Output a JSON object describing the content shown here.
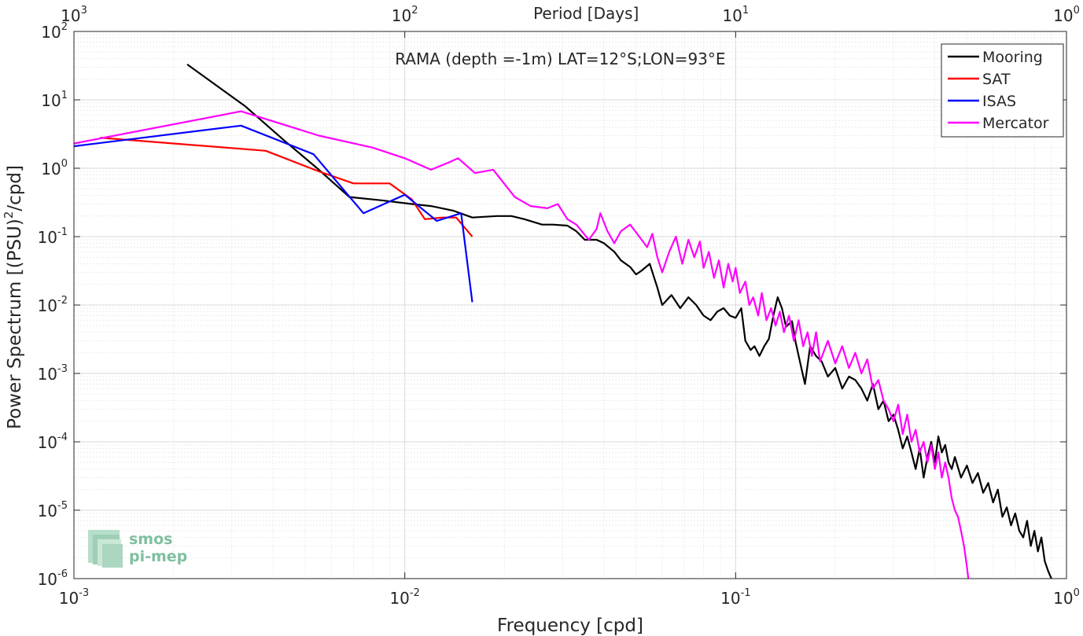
{
  "chart_data": {
    "type": "line",
    "title": "RAMA (depth =-1m) LAT=12°S;LON=93°E",
    "xlabel": "Frequency [cpd]",
    "ylabel": "Power Spectrum [(PSU)²/cpd]",
    "x2label": "Period [Days]",
    "x_scale": "log",
    "y_scale": "log",
    "xlim": [
      0.001,
      1
    ],
    "ylim": [
      1e-06,
      100
    ],
    "grid": true,
    "legend_position": "top-right",
    "x_ticks": [
      {
        "base": "10",
        "exp": "-3",
        "value": 0.001
      },
      {
        "base": "10",
        "exp": "-2",
        "value": 0.01
      },
      {
        "base": "10",
        "exp": "-1",
        "value": 0.1
      },
      {
        "base": "10",
        "exp": "0",
        "value": 1
      }
    ],
    "y_ticks": [
      {
        "base": "10",
        "exp": "-6",
        "value": 1e-06
      },
      {
        "base": "10",
        "exp": "-5",
        "value": 1e-05
      },
      {
        "base": "10",
        "exp": "-4",
        "value": 0.0001
      },
      {
        "base": "10",
        "exp": "-3",
        "value": 0.001
      },
      {
        "base": "10",
        "exp": "-2",
        "value": 0.01
      },
      {
        "base": "10",
        "exp": "-1",
        "value": 0.1
      },
      {
        "base": "10",
        "exp": "0",
        "value": 1
      },
      {
        "base": "10",
        "exp": "1",
        "value": 10
      },
      {
        "base": "10",
        "exp": "2",
        "value": 100
      }
    ],
    "x2_ticks": [
      {
        "base": "10",
        "exp": "3",
        "period": 1000
      },
      {
        "base": "10",
        "exp": "2",
        "period": 100
      },
      {
        "base": "10",
        "exp": "1",
        "period": 10
      },
      {
        "base": "10",
        "exp": "0",
        "period": 1
      }
    ],
    "series": [
      {
        "name": "Mooring",
        "color": "#000000",
        "points": [
          [
            0.0022,
            33
          ],
          [
            0.0033,
            8
          ],
          [
            0.0043,
            2.6
          ],
          [
            0.0055,
            0.95
          ],
          [
            0.0068,
            0.38
          ],
          [
            0.0085,
            0.34
          ],
          [
            0.0105,
            0.3
          ],
          [
            0.012,
            0.28
          ],
          [
            0.014,
            0.24
          ],
          [
            0.016,
            0.19
          ],
          [
            0.019,
            0.2
          ],
          [
            0.021,
            0.2
          ],
          [
            0.023,
            0.18
          ],
          [
            0.026,
            0.15
          ],
          [
            0.028,
            0.15
          ],
          [
            0.031,
            0.145
          ],
          [
            0.033,
            0.12
          ],
          [
            0.035,
            0.09
          ],
          [
            0.038,
            0.09
          ],
          [
            0.04,
            0.08
          ],
          [
            0.043,
            0.06
          ],
          [
            0.045,
            0.045
          ],
          [
            0.048,
            0.036
          ],
          [
            0.05,
            0.028
          ],
          [
            0.052,
            0.032
          ],
          [
            0.055,
            0.04
          ],
          [
            0.058,
            0.018
          ],
          [
            0.06,
            0.01
          ],
          [
            0.064,
            0.014
          ],
          [
            0.068,
            0.009
          ],
          [
            0.072,
            0.013
          ],
          [
            0.076,
            0.01
          ],
          [
            0.08,
            0.007
          ],
          [
            0.084,
            0.006
          ],
          [
            0.088,
            0.008
          ],
          [
            0.092,
            0.009
          ],
          [
            0.096,
            0.007
          ],
          [
            0.1,
            0.0065
          ],
          [
            0.104,
            0.009
          ],
          [
            0.107,
            0.003
          ],
          [
            0.111,
            0.0022
          ],
          [
            0.114,
            0.0025
          ],
          [
            0.118,
            0.0018
          ],
          [
            0.122,
            0.0025
          ],
          [
            0.126,
            0.0032
          ],
          [
            0.13,
            0.007
          ],
          [
            0.134,
            0.013
          ],
          [
            0.138,
            0.009
          ],
          [
            0.142,
            0.0048
          ],
          [
            0.148,
            0.0058
          ],
          [
            0.152,
            0.0028
          ],
          [
            0.158,
            0.0012
          ],
          [
            0.162,
            0.0007
          ],
          [
            0.168,
            0.0025
          ],
          [
            0.175,
            0.0018
          ],
          [
            0.182,
            0.0015
          ],
          [
            0.19,
            0.0009
          ],
          [
            0.2,
            0.0012
          ],
          [
            0.21,
            0.0006
          ],
          [
            0.22,
            0.0009
          ],
          [
            0.23,
            0.0008
          ],
          [
            0.24,
            0.0006
          ],
          [
            0.25,
            0.0004
          ],
          [
            0.26,
            0.0007
          ],
          [
            0.27,
            0.0003
          ],
          [
            0.28,
            0.0004
          ],
          [
            0.29,
            0.0002
          ],
          [
            0.3,
            0.00025
          ],
          [
            0.31,
            0.00015
          ],
          [
            0.32,
            8e-05
          ],
          [
            0.33,
            0.00012
          ],
          [
            0.34,
            7e-05
          ],
          [
            0.35,
            4e-05
          ],
          [
            0.36,
            8e-05
          ],
          [
            0.37,
            3e-05
          ],
          [
            0.38,
            6e-05
          ],
          [
            0.39,
            0.0001
          ],
          [
            0.4,
            5e-05
          ],
          [
            0.41,
            0.00012
          ],
          [
            0.42,
            7e-05
          ],
          [
            0.43,
            9e-05
          ],
          [
            0.44,
            5e-05
          ],
          [
            0.45,
            4e-05
          ],
          [
            0.46,
            6e-05
          ],
          [
            0.48,
            3e-05
          ],
          [
            0.5,
            4.5e-05
          ],
          [
            0.52,
            2.5e-05
          ],
          [
            0.54,
            3.5e-05
          ],
          [
            0.56,
            1.8e-05
          ],
          [
            0.58,
            2.5e-05
          ],
          [
            0.6,
            1.3e-05
          ],
          [
            0.62,
            2e-05
          ],
          [
            0.64,
            8e-06
          ],
          [
            0.66,
            1.1e-05
          ],
          [
            0.68,
            6e-06
          ],
          [
            0.7,
            9e-06
          ],
          [
            0.72,
            5e-06
          ],
          [
            0.74,
            4e-06
          ],
          [
            0.76,
            7e-06
          ],
          [
            0.78,
            3e-06
          ],
          [
            0.8,
            5e-06
          ],
          [
            0.82,
            2.5e-06
          ],
          [
            0.84,
            4e-06
          ],
          [
            0.86,
            1.8e-06
          ],
          [
            0.88,
            1.3e-06
          ],
          [
            0.9,
            1e-06
          ]
        ]
      },
      {
        "name": "SAT",
        "color": "#ff0000",
        "points": [
          [
            0.0012,
            2.8
          ],
          [
            0.0038,
            1.8
          ],
          [
            0.0055,
            0.9
          ],
          [
            0.007,
            0.6
          ],
          [
            0.009,
            0.6
          ],
          [
            0.0105,
            0.35
          ],
          [
            0.0115,
            0.18
          ],
          [
            0.013,
            0.19
          ],
          [
            0.0143,
            0.19
          ],
          [
            0.0155,
            0.12
          ],
          [
            0.016,
            0.1
          ]
        ]
      },
      {
        "name": "ISAS",
        "color": "#0000ff",
        "points": [
          [
            0.001,
            2.1
          ],
          [
            0.0032,
            4.2
          ],
          [
            0.0053,
            1.6
          ],
          [
            0.0075,
            0.22
          ],
          [
            0.01,
            0.41
          ],
          [
            0.0117,
            0.22
          ],
          [
            0.0125,
            0.17
          ],
          [
            0.0148,
            0.22
          ],
          [
            0.016,
            0.011
          ]
        ]
      },
      {
        "name": "Mercator",
        "color": "#ff00ff",
        "points": [
          [
            0.001,
            2.3
          ],
          [
            0.0032,
            6.8
          ],
          [
            0.0055,
            3
          ],
          [
            0.008,
            2
          ],
          [
            0.01,
            1.4
          ],
          [
            0.012,
            0.95
          ],
          [
            0.0135,
            1.2
          ],
          [
            0.0145,
            1.4
          ],
          [
            0.0163,
            0.85
          ],
          [
            0.0185,
            0.95
          ],
          [
            0.0215,
            0.38
          ],
          [
            0.024,
            0.28
          ],
          [
            0.027,
            0.26
          ],
          [
            0.029,
            0.3
          ],
          [
            0.031,
            0.18
          ],
          [
            0.033,
            0.15
          ],
          [
            0.036,
            0.09
          ],
          [
            0.038,
            0.13
          ],
          [
            0.039,
            0.22
          ],
          [
            0.041,
            0.12
          ],
          [
            0.043,
            0.08
          ],
          [
            0.045,
            0.12
          ],
          [
            0.048,
            0.15
          ],
          [
            0.052,
            0.09
          ],
          [
            0.054,
            0.07
          ],
          [
            0.056,
            0.11
          ],
          [
            0.058,
            0.05
          ],
          [
            0.06,
            0.03
          ],
          [
            0.063,
            0.06
          ],
          [
            0.066,
            0.1
          ],
          [
            0.069,
            0.04
          ],
          [
            0.072,
            0.09
          ],
          [
            0.075,
            0.05
          ],
          [
            0.078,
            0.085
          ],
          [
            0.08,
            0.035
          ],
          [
            0.083,
            0.06
          ],
          [
            0.086,
            0.025
          ],
          [
            0.089,
            0.045
          ],
          [
            0.092,
            0.018
          ],
          [
            0.095,
            0.04
          ],
          [
            0.098,
            0.022
          ],
          [
            0.1,
            0.035
          ],
          [
            0.103,
            0.015
          ],
          [
            0.107,
            0.022
          ],
          [
            0.11,
            0.01
          ],
          [
            0.113,
            0.013
          ],
          [
            0.117,
            0.007
          ],
          [
            0.12,
            0.015
          ],
          [
            0.124,
            0.006
          ],
          [
            0.128,
            0.009
          ],
          [
            0.132,
            0.005
          ],
          [
            0.136,
            0.008
          ],
          [
            0.14,
            0.004
          ],
          [
            0.145,
            0.007
          ],
          [
            0.15,
            0.003
          ],
          [
            0.155,
            0.006
          ],
          [
            0.16,
            0.0025
          ],
          [
            0.165,
            0.004
          ],
          [
            0.17,
            0.0018
          ],
          [
            0.175,
            0.004
          ],
          [
            0.18,
            0.0015
          ],
          [
            0.19,
            0.003
          ],
          [
            0.2,
            0.0014
          ],
          [
            0.21,
            0.0025
          ],
          [
            0.22,
            0.0012
          ],
          [
            0.23,
            0.002
          ],
          [
            0.24,
            0.001
          ],
          [
            0.25,
            0.0016
          ],
          [
            0.26,
            0.0006
          ],
          [
            0.27,
            0.0008
          ],
          [
            0.28,
            0.0004
          ],
          [
            0.29,
            0.0003
          ],
          [
            0.3,
            0.0002
          ],
          [
            0.31,
            0.00035
          ],
          [
            0.32,
            0.00013
          ],
          [
            0.33,
            0.00025
          ],
          [
            0.34,
            0.0001
          ],
          [
            0.35,
            0.00015
          ],
          [
            0.36,
            7e-05
          ],
          [
            0.37,
            0.0001
          ],
          [
            0.38,
            5e-05
          ],
          [
            0.39,
            9e-05
          ],
          [
            0.4,
            4e-05
          ],
          [
            0.41,
            7e-05
          ],
          [
            0.42,
            3e-05
          ],
          [
            0.43,
            5e-05
          ],
          [
            0.44,
            3e-05
          ],
          [
            0.45,
            1.5e-05
          ],
          [
            0.46,
            1e-05
          ],
          [
            0.47,
            8e-06
          ],
          [
            0.48,
            5e-06
          ],
          [
            0.49,
            3e-06
          ],
          [
            0.5,
            1.5e-06
          ],
          [
            0.505,
            1e-06
          ]
        ]
      }
    ]
  },
  "logo": {
    "line1": "smos",
    "line2": "pi-mep"
  }
}
